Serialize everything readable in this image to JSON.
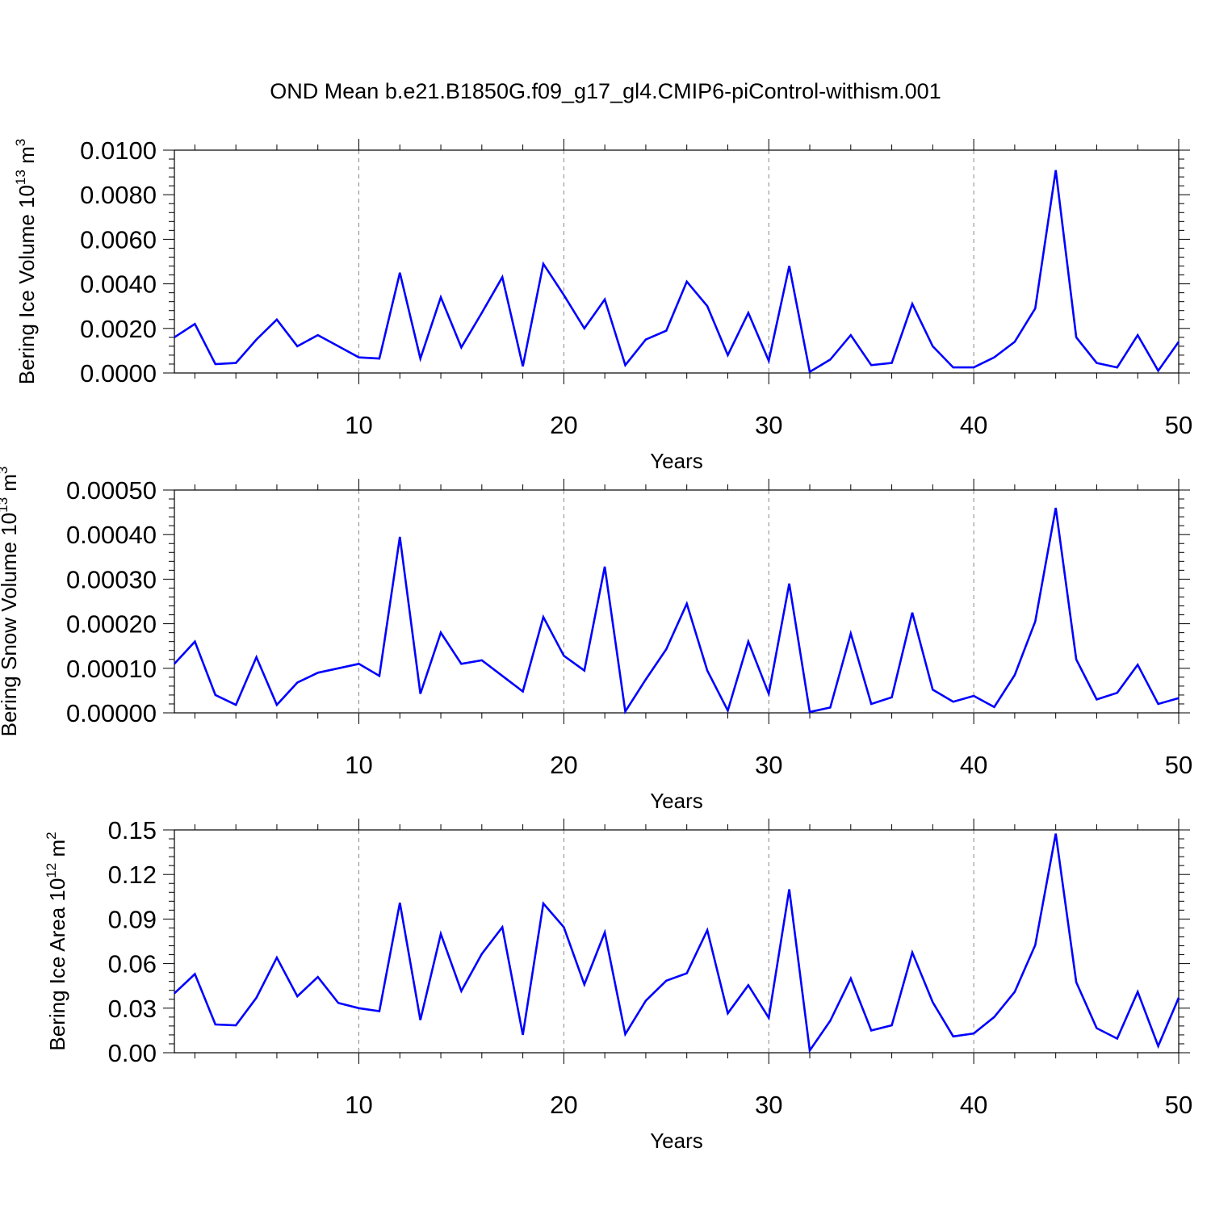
{
  "title": "OND Mean b.e21.B1850G.f09_g17_gl4.CMIP6-piControl-withism.001",
  "line_color": "#0000ff",
  "chart_data": [
    {
      "type": "line",
      "ylabel_main": "Bering Ice Volume 10",
      "ylabel_sup": "13",
      "ylabel_unit": " m",
      "ylabel_unit_sup": "3",
      "xlabel": "Years",
      "xlim": [
        1,
        50
      ],
      "ylim": [
        0,
        0.01
      ],
      "xticks": [
        10,
        20,
        30,
        40,
        50
      ],
      "yticks": [
        0,
        0.002,
        0.004,
        0.006,
        0.008,
        0.01
      ],
      "ytick_labels": [
        "0.0000",
        "0.0020",
        "0.0040",
        "0.0060",
        "0.0080",
        "0.0100"
      ],
      "grid_x": "dashed at major x ticks",
      "x": [
        1,
        2,
        3,
        4,
        5,
        6,
        7,
        8,
        9,
        10,
        11,
        12,
        13,
        14,
        15,
        16,
        17,
        18,
        19,
        20,
        21,
        22,
        23,
        24,
        25,
        26,
        27,
        28,
        29,
        30,
        31,
        32,
        33,
        34,
        35,
        36,
        37,
        38,
        39,
        40,
        41,
        42,
        43,
        44,
        45,
        46,
        47,
        48,
        49,
        50
      ],
      "series": [
        {
          "values": [
            0.0016,
            0.0022,
            0.0004,
            0.00045,
            0.0015,
            0.0024,
            0.0012,
            0.0017,
            0.0012,
            0.0007,
            0.00065,
            0.0045,
            0.00065,
            0.0034,
            0.00115,
            0.0027,
            0.0043,
            0.0003,
            0.0049,
            0.0035,
            0.002,
            0.0033,
            0.00035,
            0.0015,
            0.0019,
            0.0041,
            0.003,
            0.0008,
            0.0027,
            0.00055,
            0.0048,
            5e-05,
            0.0006,
            0.0017,
            0.00035,
            0.00045,
            0.0031,
            0.0012,
            0.00025,
            0.00025,
            0.0007,
            0.0014,
            0.0029,
            0.0091,
            0.0016,
            0.00045,
            0.00025,
            0.0017,
            0.0001,
            0.0014
          ]
        }
      ]
    },
    {
      "type": "line",
      "ylabel_main": "Bering Snow Volume 10",
      "ylabel_sup": "13",
      "ylabel_unit": " m",
      "ylabel_unit_sup": "3",
      "xlabel": "Years",
      "xlim": [
        1,
        50
      ],
      "ylim": [
        0,
        0.0005
      ],
      "xticks": [
        10,
        20,
        30,
        40,
        50
      ],
      "yticks": [
        0,
        0.0001,
        0.0002,
        0.0003,
        0.0004,
        0.0005
      ],
      "ytick_labels": [
        "0.00000",
        "0.00010",
        "0.00020",
        "0.00030",
        "0.00040",
        "0.00050"
      ],
      "grid_x": "dashed at major x ticks",
      "x": [
        1,
        2,
        3,
        4,
        5,
        6,
        7,
        8,
        9,
        10,
        11,
        12,
        13,
        14,
        15,
        16,
        17,
        18,
        19,
        20,
        21,
        22,
        23,
        24,
        25,
        26,
        27,
        28,
        29,
        30,
        31,
        32,
        33,
        34,
        35,
        36,
        37,
        38,
        39,
        40,
        41,
        42,
        43,
        44,
        45,
        46,
        47,
        48,
        49,
        50
      ],
      "series": [
        {
          "values": [
            0.00011,
            0.00016,
            4e-05,
            1.8e-05,
            0.000125,
            1.8e-05,
            6.8e-05,
            9e-05,
            0.0001,
            0.00011,
            8.3e-05,
            0.000395,
            4.3e-05,
            0.00018,
            0.00011,
            0.000118,
            8.3e-05,
            4.8e-05,
            0.000215,
            0.000128,
            9.5e-05,
            0.000328,
            3e-06,
            7.5e-05,
            0.000143,
            0.000245,
            9.5e-05,
            5e-06,
            0.00016,
            4.3e-05,
            0.00029,
            2e-06,
            1.2e-05,
            0.000178,
            2e-05,
            3.5e-05,
            0.000225,
            5.2e-05,
            2.5e-05,
            3.8e-05,
            1.3e-05,
            8.5e-05,
            0.000205,
            0.00046,
            0.00012,
            3e-05,
            4.5e-05,
            0.000108,
            2e-05,
            3.3e-05
          ]
        }
      ]
    },
    {
      "type": "line",
      "ylabel_main": "Bering Ice Area 10",
      "ylabel_sup": "12",
      "ylabel_unit": " m",
      "ylabel_unit_sup": "2",
      "xlabel": "Years",
      "xlim": [
        1,
        50
      ],
      "ylim": [
        0,
        0.15
      ],
      "xticks": [
        10,
        20,
        30,
        40,
        50
      ],
      "yticks": [
        0,
        0.03,
        0.06,
        0.09,
        0.12,
        0.15
      ],
      "ytick_labels": [
        "0.00",
        "0.03",
        "0.06",
        "0.09",
        "0.12",
        "0.15"
      ],
      "grid_x": "dashed at major x ticks",
      "x": [
        1,
        2,
        3,
        4,
        5,
        6,
        7,
        8,
        9,
        10,
        11,
        12,
        13,
        14,
        15,
        16,
        17,
        18,
        19,
        20,
        21,
        22,
        23,
        24,
        25,
        26,
        27,
        28,
        29,
        30,
        31,
        32,
        33,
        34,
        35,
        36,
        37,
        38,
        39,
        40,
        41,
        42,
        43,
        44,
        45,
        46,
        47,
        48,
        49,
        50
      ],
      "series": [
        {
          "values": [
            0.04,
            0.053,
            0.019,
            0.0185,
            0.037,
            0.064,
            0.038,
            0.051,
            0.0335,
            0.03,
            0.028,
            0.101,
            0.022,
            0.08,
            0.0415,
            0.0665,
            0.0845,
            0.012,
            0.1005,
            0.0845,
            0.046,
            0.081,
            0.0125,
            0.035,
            0.0485,
            0.0535,
            0.0825,
            0.0265,
            0.0455,
            0.0235,
            0.11,
            0.0015,
            0.0215,
            0.05,
            0.015,
            0.0185,
            0.0675,
            0.034,
            0.011,
            0.013,
            0.024,
            0.041,
            0.0725,
            0.1475,
            0.0475,
            0.0165,
            0.0095,
            0.041,
            0.0045,
            0.037
          ]
        }
      ]
    }
  ]
}
